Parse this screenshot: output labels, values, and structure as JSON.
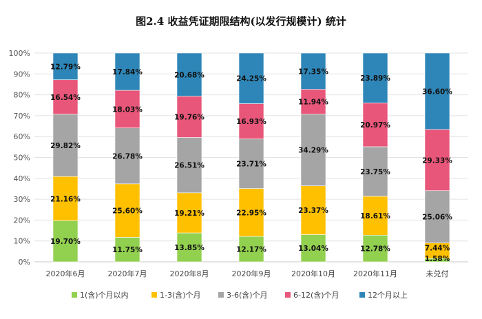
{
  "chart_data": {
    "type": "bar",
    "stacked": true,
    "percent": true,
    "title": "图2.4 收益凭证期限结构(以发行规模计) 统计",
    "categories": [
      "2020年6月",
      "2020年7月",
      "2020年8月",
      "2020年9月",
      "2020年10月",
      "2020年11月",
      "未兑付"
    ],
    "yticks": [
      "0%",
      "10%",
      "20%",
      "30%",
      "40%",
      "50%",
      "60%",
      "70%",
      "80%",
      "90%",
      "100%"
    ],
    "ylim": [
      0,
      100
    ],
    "legend_position": "bottom",
    "series": [
      {
        "name": "1(含)个月以内",
        "color": "#92d050",
        "values": [
          19.7,
          11.75,
          13.85,
          12.17,
          13.04,
          12.78,
          1.58
        ],
        "labels": [
          "19.70%",
          "11.75%",
          "13.85%",
          "12.17%",
          "13.04%",
          "12.78%",
          "1.58%"
        ]
      },
      {
        "name": "1-3(含)个月",
        "color": "#ffc000",
        "values": [
          21.16,
          25.6,
          19.21,
          22.95,
          23.37,
          18.61,
          7.44
        ],
        "labels": [
          "21.16%",
          "25.60%",
          "19.21%",
          "22.95%",
          "23.37%",
          "18.61%",
          "7.44%"
        ]
      },
      {
        "name": "3-6(含)个月",
        "color": "#a5a5a5",
        "values": [
          29.82,
          26.78,
          26.51,
          23.71,
          34.29,
          23.75,
          25.06
        ],
        "labels": [
          "29.82%",
          "26.78%",
          "26.51%",
          "23.71%",
          "34.29%",
          "23.75%",
          "25.06%"
        ]
      },
      {
        "name": "6-12(含)个月",
        "color": "#e8567a",
        "values": [
          16.54,
          18.03,
          19.76,
          16.93,
          11.94,
          20.97,
          29.33
        ],
        "labels": [
          "16.54%",
          "18.03%",
          "19.76%",
          "16.93%",
          "11.94%",
          "20.97%",
          "29.33%"
        ]
      },
      {
        "name": "12个月以上",
        "color": "#2e86b8",
        "values": [
          12.79,
          17.84,
          20.68,
          24.25,
          17.35,
          23.89,
          36.6
        ],
        "labels": [
          "12.79%",
          "17.84%",
          "20.68%",
          "24.25%",
          "17.35%",
          "23.89%",
          "36.60%"
        ]
      }
    ]
  }
}
